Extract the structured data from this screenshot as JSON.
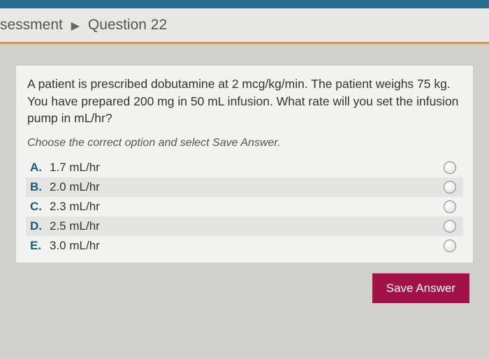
{
  "breadcrumb": {
    "assessment": "sessment",
    "question": "Question 22"
  },
  "question": {
    "prompt": "A patient is prescribed dobutamine at 2 mcg/kg/min. The patient weighs 75 kg. You have prepared 200 mg in 50 mL infusion. What rate will you set the infusion pump in mL/hr?",
    "instruction": "Choose the correct option and select Save Answer."
  },
  "options": [
    {
      "letter": "A.",
      "text": "1.7 mL/hr"
    },
    {
      "letter": "B.",
      "text": "2.0 mL/hr"
    },
    {
      "letter": "C.",
      "text": "2.3 mL/hr"
    },
    {
      "letter": "D.",
      "text": "2.5 mL/hr"
    },
    {
      "letter": "E.",
      "text": "3.0 mL/hr"
    }
  ],
  "buttons": {
    "save": "Save Answer"
  },
  "colors": {
    "top_bar": "#2a6e8f",
    "accent_line": "#e0943a",
    "body_bg": "#d0d0cc",
    "card_bg": "#f2f2f0",
    "option_letter": "#1a5a7a",
    "save_btn_bg": "#a31247",
    "save_btn_text": "#ffffff"
  }
}
